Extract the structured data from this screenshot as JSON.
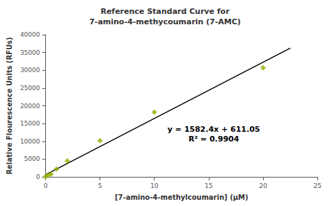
{
  "chart_data": {
    "type": "scatter",
    "title": "Reference Standard Curve for\n7-amino-4-methycoumarin (7-AMC)",
    "x_label": "[7-amino-4-methylcoumarin] (μM)",
    "y_label": "Relative Flourescence Units (RFUs)",
    "xlim": [
      0,
      25
    ],
    "ylim": [
      0,
      40000
    ],
    "xticks": [
      0,
      5,
      10,
      15,
      20,
      25
    ],
    "yticks": [
      0,
      5000,
      10000,
      15000,
      20000,
      25000,
      30000,
      35000,
      40000
    ],
    "grid": false,
    "series": [
      {
        "type": "scatter",
        "marker": "diamond",
        "color": "#8DB000",
        "x": [
          0.0,
          0.25,
          0.5,
          1.0,
          2.0,
          5.0,
          10.0,
          20.0
        ],
        "values": [
          100,
          500,
          800,
          2200,
          4500,
          10200,
          18200,
          30700
        ]
      },
      {
        "type": "line",
        "line_style": "solid",
        "color": "#000000",
        "x": [
          0,
          22.5
        ],
        "values": [
          611.05,
          36215.05
        ]
      }
    ],
    "annotations": [
      "y = 1582.4x + 611.05\nR² = 0.9904"
    ]
  }
}
